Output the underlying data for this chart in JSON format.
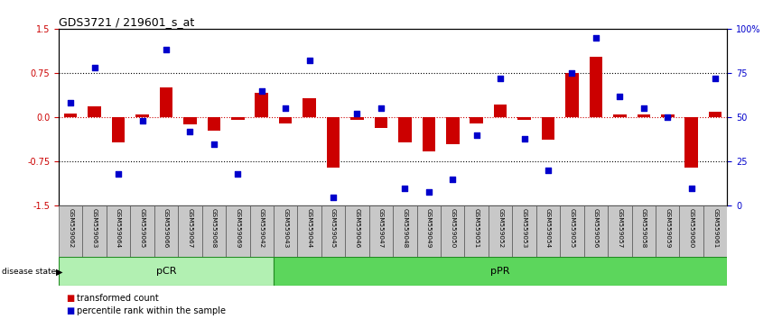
{
  "title": "GDS3721 / 219601_s_at",
  "samples": [
    "GSM559062",
    "GSM559063",
    "GSM559064",
    "GSM559065",
    "GSM559066",
    "GSM559067",
    "GSM559068",
    "GSM559069",
    "GSM559042",
    "GSM559043",
    "GSM559044",
    "GSM559045",
    "GSM559046",
    "GSM559047",
    "GSM559048",
    "GSM559049",
    "GSM559050",
    "GSM559051",
    "GSM559052",
    "GSM559053",
    "GSM559054",
    "GSM559055",
    "GSM559056",
    "GSM559057",
    "GSM559058",
    "GSM559059",
    "GSM559060",
    "GSM559061"
  ],
  "bar_values": [
    0.07,
    0.18,
    -0.42,
    0.05,
    0.5,
    -0.12,
    -0.22,
    -0.05,
    0.42,
    -0.1,
    0.32,
    -0.85,
    -0.05,
    -0.18,
    -0.42,
    -0.58,
    -0.45,
    -0.1,
    0.22,
    -0.05,
    -0.38,
    0.75,
    1.02,
    0.05,
    0.04,
    0.04,
    -0.85,
    0.1
  ],
  "percentile_values": [
    58,
    78,
    18,
    48,
    88,
    42,
    35,
    18,
    65,
    55,
    82,
    5,
    52,
    55,
    10,
    8,
    15,
    40,
    72,
    38,
    20,
    75,
    95,
    62,
    55,
    50,
    10,
    72
  ],
  "pCR_count": 9,
  "pPR_count": 19,
  "bar_color": "#cc0000",
  "dot_color": "#0000cc",
  "pCR_color": "#b2f0b2",
  "pPR_color": "#5cd65c",
  "ylim": [
    -1.5,
    1.5
  ],
  "yticks_left": [
    -1.5,
    -0.75,
    0.0,
    0.75,
    1.5
  ],
  "yticks_right_pct": [
    0,
    25,
    50,
    75,
    100
  ],
  "hline_dotted": [
    0.75,
    -0.75
  ],
  "background_color": "#ffffff"
}
